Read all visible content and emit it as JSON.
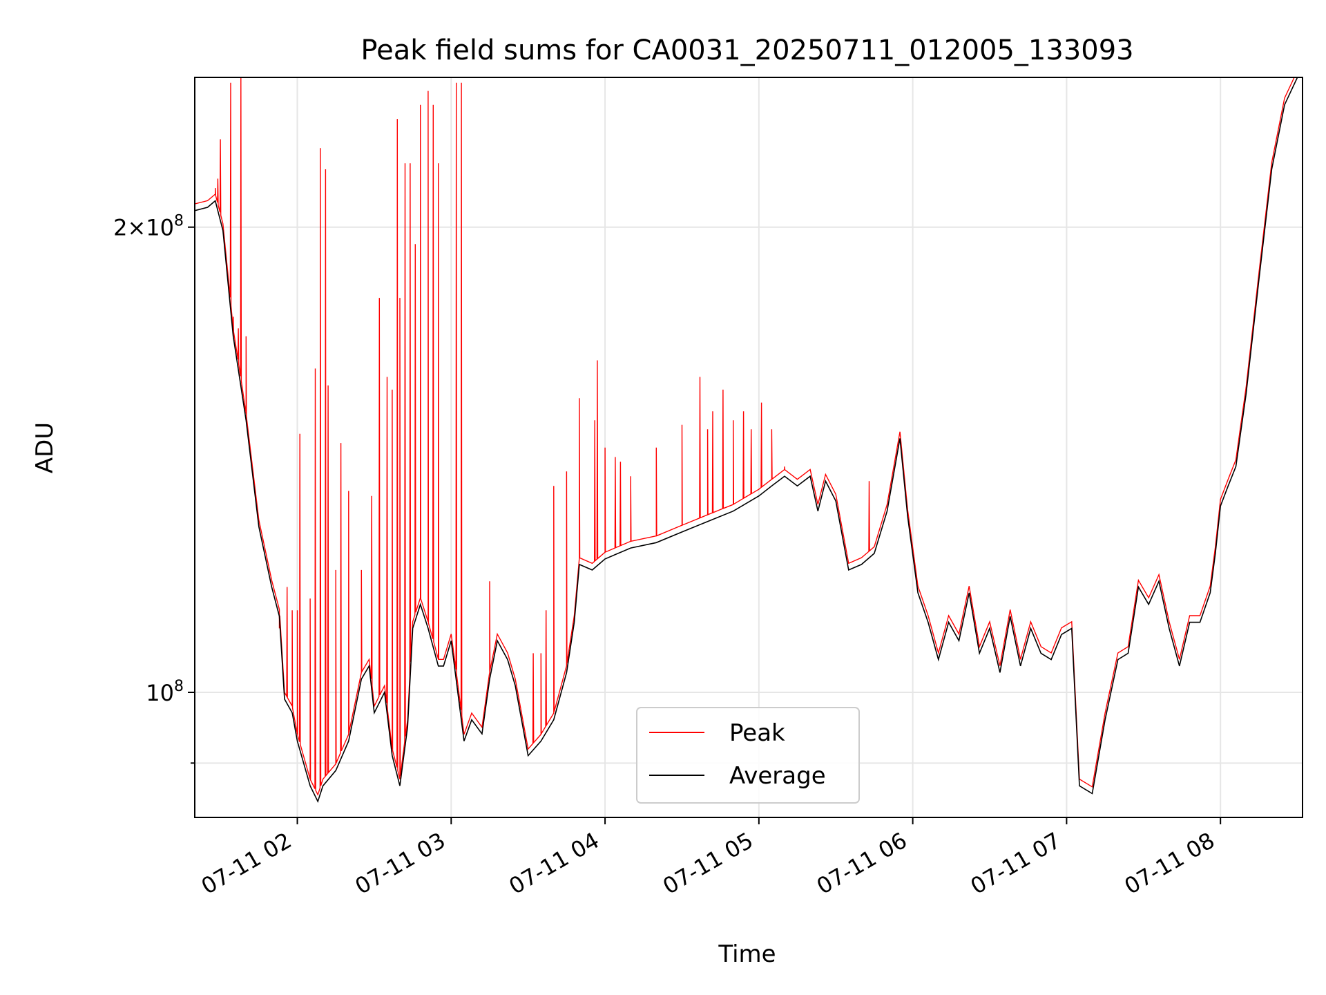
{
  "chart_data": {
    "type": "line",
    "title": "Peak field sums for CA0031_20250711_012005_133093",
    "xlabel": "Time",
    "ylabel": "ADU",
    "y_scale": "log",
    "xlim": [
      "2025-07-11 01:20",
      "2025-07-11 08:32"
    ],
    "ylim": [
      83000000,
      250000000
    ],
    "x_ticks": [
      "2025-07-11 02:00",
      "2025-07-11 03:00",
      "2025-07-11 04:00",
      "2025-07-11 05:00",
      "2025-07-11 06:00",
      "2025-07-11 07:00",
      "2025-07-11 08:00"
    ],
    "x_tick_labels": [
      "07-11 02",
      "07-11 03",
      "07-11 04",
      "07-11 05",
      "07-11 06",
      "07-11 07",
      "07-11 08"
    ],
    "y_ticks": [
      100000000,
      200000000
    ],
    "y_tick_labels": [
      "10^8",
      "2×10^8"
    ],
    "grid": true,
    "legend_position": "lower-center",
    "colors": {
      "peak": "#ff0000",
      "average": "#000000"
    },
    "series": [
      {
        "name": "Average",
        "color": "#000000",
        "points": [
          [
            "01:20",
            205000000
          ],
          [
            "01:25",
            206000000
          ],
          [
            "01:28",
            208000000
          ],
          [
            "01:31",
            199000000
          ],
          [
            "01:35",
            170000000
          ],
          [
            "01:40",
            150000000
          ],
          [
            "01:45",
            128000000
          ],
          [
            "01:50",
            117000000
          ],
          [
            "01:53",
            112000000
          ],
          [
            "01:55",
            99000000
          ],
          [
            "01:58",
            97000000
          ],
          [
            "02:00",
            93000000
          ],
          [
            "02:05",
            87000000
          ],
          [
            "02:08",
            85000000
          ],
          [
            "02:10",
            87000000
          ],
          [
            "02:15",
            89000000
          ],
          [
            "02:20",
            93000000
          ],
          [
            "02:25",
            102000000
          ],
          [
            "02:28",
            104000000
          ],
          [
            "02:30",
            97000000
          ],
          [
            "02:34",
            100000000
          ],
          [
            "02:37",
            91000000
          ],
          [
            "02:40",
            87000000
          ],
          [
            "02:43",
            95000000
          ],
          [
            "02:45",
            110000000
          ],
          [
            "02:48",
            114000000
          ],
          [
            "02:51",
            110000000
          ],
          [
            "02:55",
            104000000
          ],
          [
            "02:57",
            104000000
          ],
          [
            "03:00",
            108000000
          ],
          [
            "03:05",
            93000000
          ],
          [
            "03:08",
            96000000
          ],
          [
            "03:12",
            94000000
          ],
          [
            "03:15",
            102000000
          ],
          [
            "03:18",
            108000000
          ],
          [
            "03:22",
            105000000
          ],
          [
            "03:25",
            101000000
          ],
          [
            "03:30",
            91000000
          ],
          [
            "03:35",
            93000000
          ],
          [
            "03:40",
            96000000
          ],
          [
            "03:45",
            103000000
          ],
          [
            "03:48",
            111000000
          ],
          [
            "03:50",
            121000000
          ],
          [
            "03:55",
            120000000
          ],
          [
            "04:00",
            122000000
          ],
          [
            "04:10",
            124000000
          ],
          [
            "04:20",
            125000000
          ],
          [
            "04:30",
            127000000
          ],
          [
            "04:40",
            129000000
          ],
          [
            "04:50",
            131000000
          ],
          [
            "05:00",
            134000000
          ],
          [
            "05:05",
            136000000
          ],
          [
            "05:10",
            138000000
          ],
          [
            "05:15",
            136000000
          ],
          [
            "05:20",
            138000000
          ],
          [
            "05:23",
            131000000
          ],
          [
            "05:26",
            137000000
          ],
          [
            "05:30",
            133000000
          ],
          [
            "05:35",
            120000000
          ],
          [
            "05:40",
            121000000
          ],
          [
            "05:45",
            123000000
          ],
          [
            "05:50",
            131000000
          ],
          [
            "05:55",
            146000000
          ],
          [
            "05:58",
            130000000
          ],
          [
            "06:02",
            116000000
          ],
          [
            "06:06",
            111000000
          ],
          [
            "06:10",
            105000000
          ],
          [
            "06:14",
            111000000
          ],
          [
            "06:18",
            108000000
          ],
          [
            "06:22",
            116000000
          ],
          [
            "06:26",
            106000000
          ],
          [
            "06:30",
            110000000
          ],
          [
            "06:34",
            103000000
          ],
          [
            "06:38",
            112000000
          ],
          [
            "06:42",
            104000000
          ],
          [
            "06:46",
            110000000
          ],
          [
            "06:50",
            106000000
          ],
          [
            "06:54",
            105000000
          ],
          [
            "06:58",
            109000000
          ],
          [
            "07:02",
            110000000
          ],
          [
            "07:05",
            87000000
          ],
          [
            "07:10",
            86000000
          ],
          [
            "07:15",
            96000000
          ],
          [
            "07:20",
            105000000
          ],
          [
            "07:24",
            106000000
          ],
          [
            "07:28",
            117000000
          ],
          [
            "07:32",
            114000000
          ],
          [
            "07:36",
            118000000
          ],
          [
            "07:40",
            110000000
          ],
          [
            "07:44",
            104000000
          ],
          [
            "07:48",
            111000000
          ],
          [
            "07:52",
            111000000
          ],
          [
            "07:56",
            116000000
          ],
          [
            "07:58",
            123000000
          ],
          [
            "08:00",
            132000000
          ],
          [
            "08:03",
            136000000
          ],
          [
            "08:06",
            140000000
          ],
          [
            "08:10",
            156000000
          ],
          [
            "08:15",
            185000000
          ],
          [
            "08:20",
            218000000
          ],
          [
            "08:25",
            240000000
          ],
          [
            "08:30",
            250000000
          ]
        ]
      },
      {
        "name": "Peak",
        "color": "#ff0000",
        "note_spikes": "Peak follows Average plus narrow spikes",
        "spikes": [
          [
            "01:28",
            212000000
          ],
          [
            "01:29",
            215000000
          ],
          [
            "01:30",
            228000000
          ],
          [
            "01:34",
            248000000
          ],
          [
            "01:35",
            175000000
          ],
          [
            "01:37",
            172000000
          ],
          [
            "01:38",
            250000000
          ],
          [
            "01:40",
            170000000
          ],
          [
            "01:53",
            110000000
          ],
          [
            "01:56",
            117000000
          ],
          [
            "01:58",
            113000000
          ],
          [
            "02:00",
            113000000
          ],
          [
            "02:01",
            147000000
          ],
          [
            "02:05",
            115000000
          ],
          [
            "02:07",
            162000000
          ],
          [
            "02:09",
            225000000
          ],
          [
            "02:11",
            218000000
          ],
          [
            "02:12",
            158000000
          ],
          [
            "02:15",
            120000000
          ],
          [
            "02:17",
            145000000
          ],
          [
            "02:20",
            135000000
          ],
          [
            "02:25",
            120000000
          ],
          [
            "02:29",
            134000000
          ],
          [
            "02:32",
            180000000
          ],
          [
            "02:35",
            160000000
          ],
          [
            "02:37",
            157000000
          ],
          [
            "02:39",
            235000000
          ],
          [
            "02:40",
            180000000
          ],
          [
            "02:42",
            220000000
          ],
          [
            "02:44",
            220000000
          ],
          [
            "02:46",
            195000000
          ],
          [
            "02:48",
            240000000
          ],
          [
            "02:51",
            245000000
          ],
          [
            "02:53",
            240000000
          ],
          [
            "02:55",
            220000000
          ],
          [
            "03:02",
            248000000
          ],
          [
            "03:04",
            248000000
          ],
          [
            "03:15",
            118000000
          ],
          [
            "03:32",
            106000000
          ],
          [
            "03:35",
            106000000
          ],
          [
            "03:37",
            113000000
          ],
          [
            "03:40",
            136000000
          ],
          [
            "03:45",
            139000000
          ],
          [
            "03:50",
            155000000
          ],
          [
            "03:56",
            150000000
          ],
          [
            "03:57",
            164000000
          ],
          [
            "04:00",
            144000000
          ],
          [
            "04:04",
            142000000
          ],
          [
            "04:06",
            141000000
          ],
          [
            "04:10",
            138000000
          ],
          [
            "04:20",
            144000000
          ],
          [
            "04:30",
            149000000
          ],
          [
            "04:37",
            160000000
          ],
          [
            "04:40",
            148000000
          ],
          [
            "04:42",
            152000000
          ],
          [
            "04:46",
            157000000
          ],
          [
            "04:50",
            150000000
          ],
          [
            "04:54",
            152000000
          ],
          [
            "04:57",
            148000000
          ],
          [
            "05:01",
            154000000
          ],
          [
            "05:05",
            148000000
          ],
          [
            "05:10",
            140000000
          ],
          [
            "05:43",
            137000000
          ]
        ]
      }
    ]
  }
}
